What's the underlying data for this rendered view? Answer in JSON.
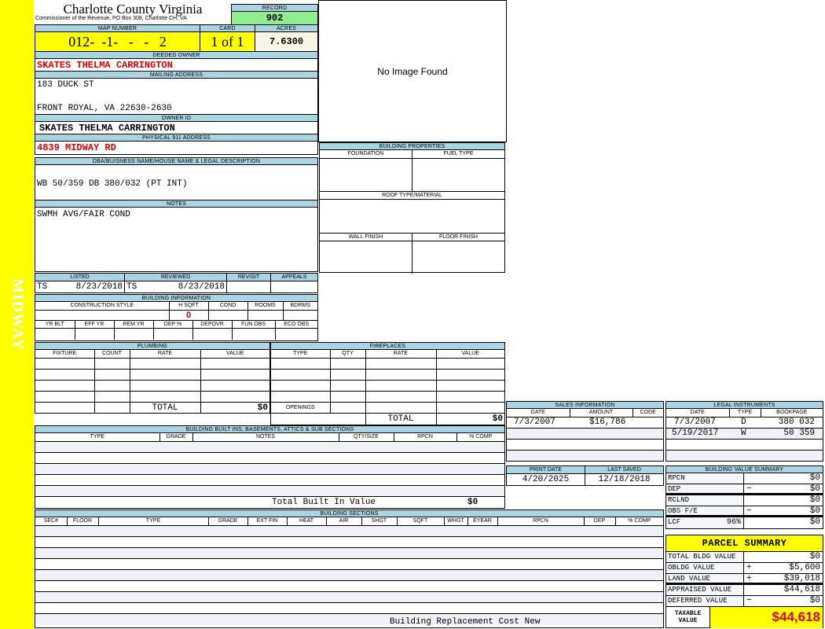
{
  "side_label": "MIDWAY",
  "header": {
    "title": "Charlotte County Virginia",
    "subtitle": "Commissioner of the Revenue, PO Box 308, Charlotte CH, VA",
    "record_label": "RECORD",
    "record": "902"
  },
  "map": {
    "map_label": "MAP NUMBER",
    "map_number": "012-  -1-   -   -   2",
    "card_label": "CARD",
    "card": "1 of 1",
    "acres_label": "ACRES",
    "acres": "7.6300"
  },
  "owner": {
    "deeded_label": "DEEDED OWNER",
    "deeded": "SKATES THELMA CARRINGTON",
    "mailing_label": "MAILING ADDRESS",
    "mailing_line1": "183 DUCK ST",
    "mailing_line2": "FRONT ROYAL, VA 22630-2630",
    "owner_id_label": "OWNER ID",
    "owner_id": "SKATES THELMA CARRINGTON",
    "physical_label": "PHYSICAL 911 ADDRESS",
    "physical": "4839 MIDWAY RD"
  },
  "image": {
    "text": "No Image Found"
  },
  "dba": {
    "label": "DBA/BUISNESS NAME/HOUSE NAME & LEGAL DESCRIPTION",
    "value": "WB 50/359 DB 380/032 (PT INT)"
  },
  "notes": {
    "label": "NOTES",
    "value": "SWMH AVG/FAIR COND"
  },
  "building_properties": {
    "label": "BUILDING PROPERTIES",
    "foundation": "FOUNDATION",
    "fuel": "FUEL TYPE",
    "roof": "ROOF TYPE/MATERIAL",
    "wall": "WALL FINISH",
    "floor": "FLOOR FINISH"
  },
  "review": {
    "listed_label": "LISTED",
    "listed_by": "TS",
    "listed_date": "8/23/2018",
    "reviewed_label": "REVIEWED",
    "reviewed_by": "TS",
    "reviewed_date": "8/23/2018",
    "revisit_label": "REVISIT",
    "appeals_label": "APPEALS"
  },
  "building_info": {
    "label": "BUILDING INFORMATION",
    "headers1": [
      "CONSTRUCTION STYLE",
      "H SQFT",
      "COND",
      "ROOMS",
      "BDRMS"
    ],
    "hsqft": "0",
    "headers2": [
      "YR BLT",
      "EFF YR",
      "REM YR",
      "DEP %",
      "DEPOVR",
      "FUN OBS",
      "ECO OBS"
    ]
  },
  "plumbing": {
    "label": "PLUMBING",
    "headers": [
      "FIXTURE",
      "COUNT",
      "RATE",
      "VALUE"
    ],
    "total_label": "TOTAL",
    "total": "$0"
  },
  "fireplaces": {
    "label": "FIREPLACES",
    "headers": [
      "TYPE",
      "QTY",
      "RATE",
      "VALUE"
    ],
    "openings_label": "OPENINGS",
    "total_label": "TOTAL",
    "total": "$0"
  },
  "built_ins": {
    "label": "BUILDING BUILT INS, BASEMENTS, ATTICS & SUB SECTIONS",
    "headers": [
      "TYPE",
      "GRADE",
      "NOTES",
      "QTY/SIZE",
      "RPCN",
      "% COMP"
    ],
    "total_label": "Total Built In Value",
    "total": "$0"
  },
  "sections": {
    "label": "BUILDING SECTIONS",
    "headers": [
      "SEC#",
      "FLOOR",
      "TYPE",
      "GRADE",
      "EXT FIN",
      "HEAT",
      "AIR",
      "SHGT",
      "SQFT",
      "WHGT",
      "EYEAR",
      "RPCN",
      "DEP",
      "% COMP"
    ],
    "footer": "Building Replacement Cost New"
  },
  "sales": {
    "label": "SALES INFORMATION",
    "headers": [
      "DATE",
      "AMOUNT",
      "CODE"
    ],
    "rows": [
      {
        "date": "7/3/2007",
        "amount": "$16,786",
        "code": ""
      }
    ]
  },
  "legal": {
    "label": "LEGAL INSTRUMENTS",
    "headers": [
      "DATE",
      "TYPE",
      "BOOKPAGE"
    ],
    "rows": [
      {
        "date": "7/3/2007",
        "type": "D",
        "bookpage": "380 032"
      },
      {
        "date": "5/19/2017",
        "type": "W",
        "bookpage": "50 359"
      }
    ]
  },
  "dates": {
    "print_label": "PRINT DATE",
    "print": "4/20/2025",
    "saved_label": "LAST SAVED",
    "saved": "12/18/2018"
  },
  "value_summary": {
    "label": "BUILDING VALUE SUMMARY",
    "rows": [
      {
        "name": "RPCN",
        "sign": "",
        "value": "$0"
      },
      {
        "name": "DEP",
        "sign": "−",
        "value": "$0"
      },
      {
        "name": "RCLND",
        "sign": "",
        "value": "$0"
      },
      {
        "name": "OBS F/E",
        "sign": "−",
        "value": "$0"
      },
      {
        "name": "LCF",
        "pct": "96%",
        "sign": "",
        "value": "$0"
      }
    ]
  },
  "parcel": {
    "label": "PARCEL SUMMARY",
    "rows": [
      {
        "name": "TOTAL BLDG VALUE",
        "sign": "",
        "value": "$0"
      },
      {
        "name": "OBLDG VALUE",
        "sign": "+",
        "value": "$5,600"
      },
      {
        "name": "LAND VALUE",
        "sign": "+",
        "value": "$39,018"
      },
      {
        "name": "APPRAISED VALUE",
        "sign": "",
        "value": "$44,618"
      },
      {
        "name": "DEFERRED VALUE",
        "sign": "−",
        "value": "$0"
      }
    ],
    "taxable_label_1": "TAXABLE",
    "taxable_label_2": "VALUE",
    "taxable": "$44,618"
  },
  "colors": {
    "header_blue": "#a9d4e4",
    "highlight_yellow": "#ffff00",
    "record_green": "#90ee90",
    "value_red": "#e00000"
  }
}
